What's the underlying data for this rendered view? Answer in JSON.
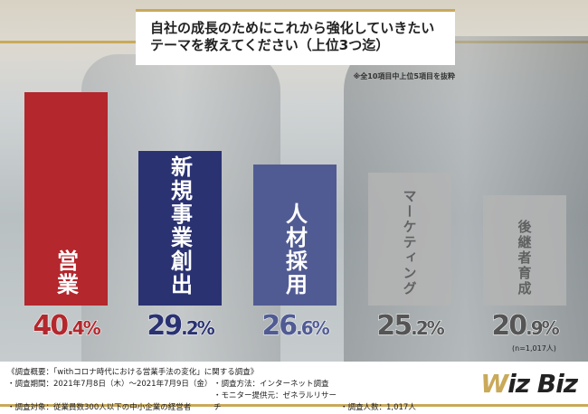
{
  "title_lines": [
    "自社の成長のためにこれから強化していきたい",
    "テーマを教えてください（上位3つ迄）"
  ],
  "note": "※全10項目中上位5項目を抜粋",
  "chart_data": {
    "type": "bar",
    "title": "自社の成長のためにこれから強化していきたいテーマを教えてください（上位3つ迄）",
    "categories": [
      "営業",
      "新規事業創出",
      "人材採用",
      "マーケティング",
      "後継者育成"
    ],
    "values": [
      40.4,
      29.2,
      26.6,
      25.2,
      20.9
    ],
    "value_labels": [
      [
        "40",
        ".4%"
      ],
      [
        "29",
        ".2%"
      ],
      [
        "26",
        ".6%"
      ],
      [
        "25",
        ".2%"
      ],
      [
        "20",
        ".9%"
      ]
    ],
    "colors": [
      "#b3272d",
      "#2a3272",
      "#515b93",
      "#b4b4b4",
      "#b4b4b4"
    ],
    "text_colors": [
      "#b3272d",
      "#2a3272",
      "#515b93",
      "#555555",
      "#555555"
    ],
    "label_colors": [
      "#ffffff",
      "#ffffff",
      "#ffffff",
      "#555555",
      "#555555"
    ],
    "ylim": [
      0,
      45
    ],
    "unit": "%",
    "sample": "(n=1,017人)"
  },
  "footer": {
    "heading": "《調査概要：「withコロナ時代における営業手法の変化」に関する調査》",
    "period": "・調査期間：2021年7月8日（木）〜2021年7月9日（金）",
    "method": "・調査方法：インターネット調査",
    "target": "・調査対象：従業員数300人以下の中小企業の経営者",
    "provider": "・モニター提供元：ゼネラルリサーチ",
    "count": "・調査人数：1,017人"
  },
  "logo": {
    "w": "W",
    "rest": "iz Biz"
  }
}
